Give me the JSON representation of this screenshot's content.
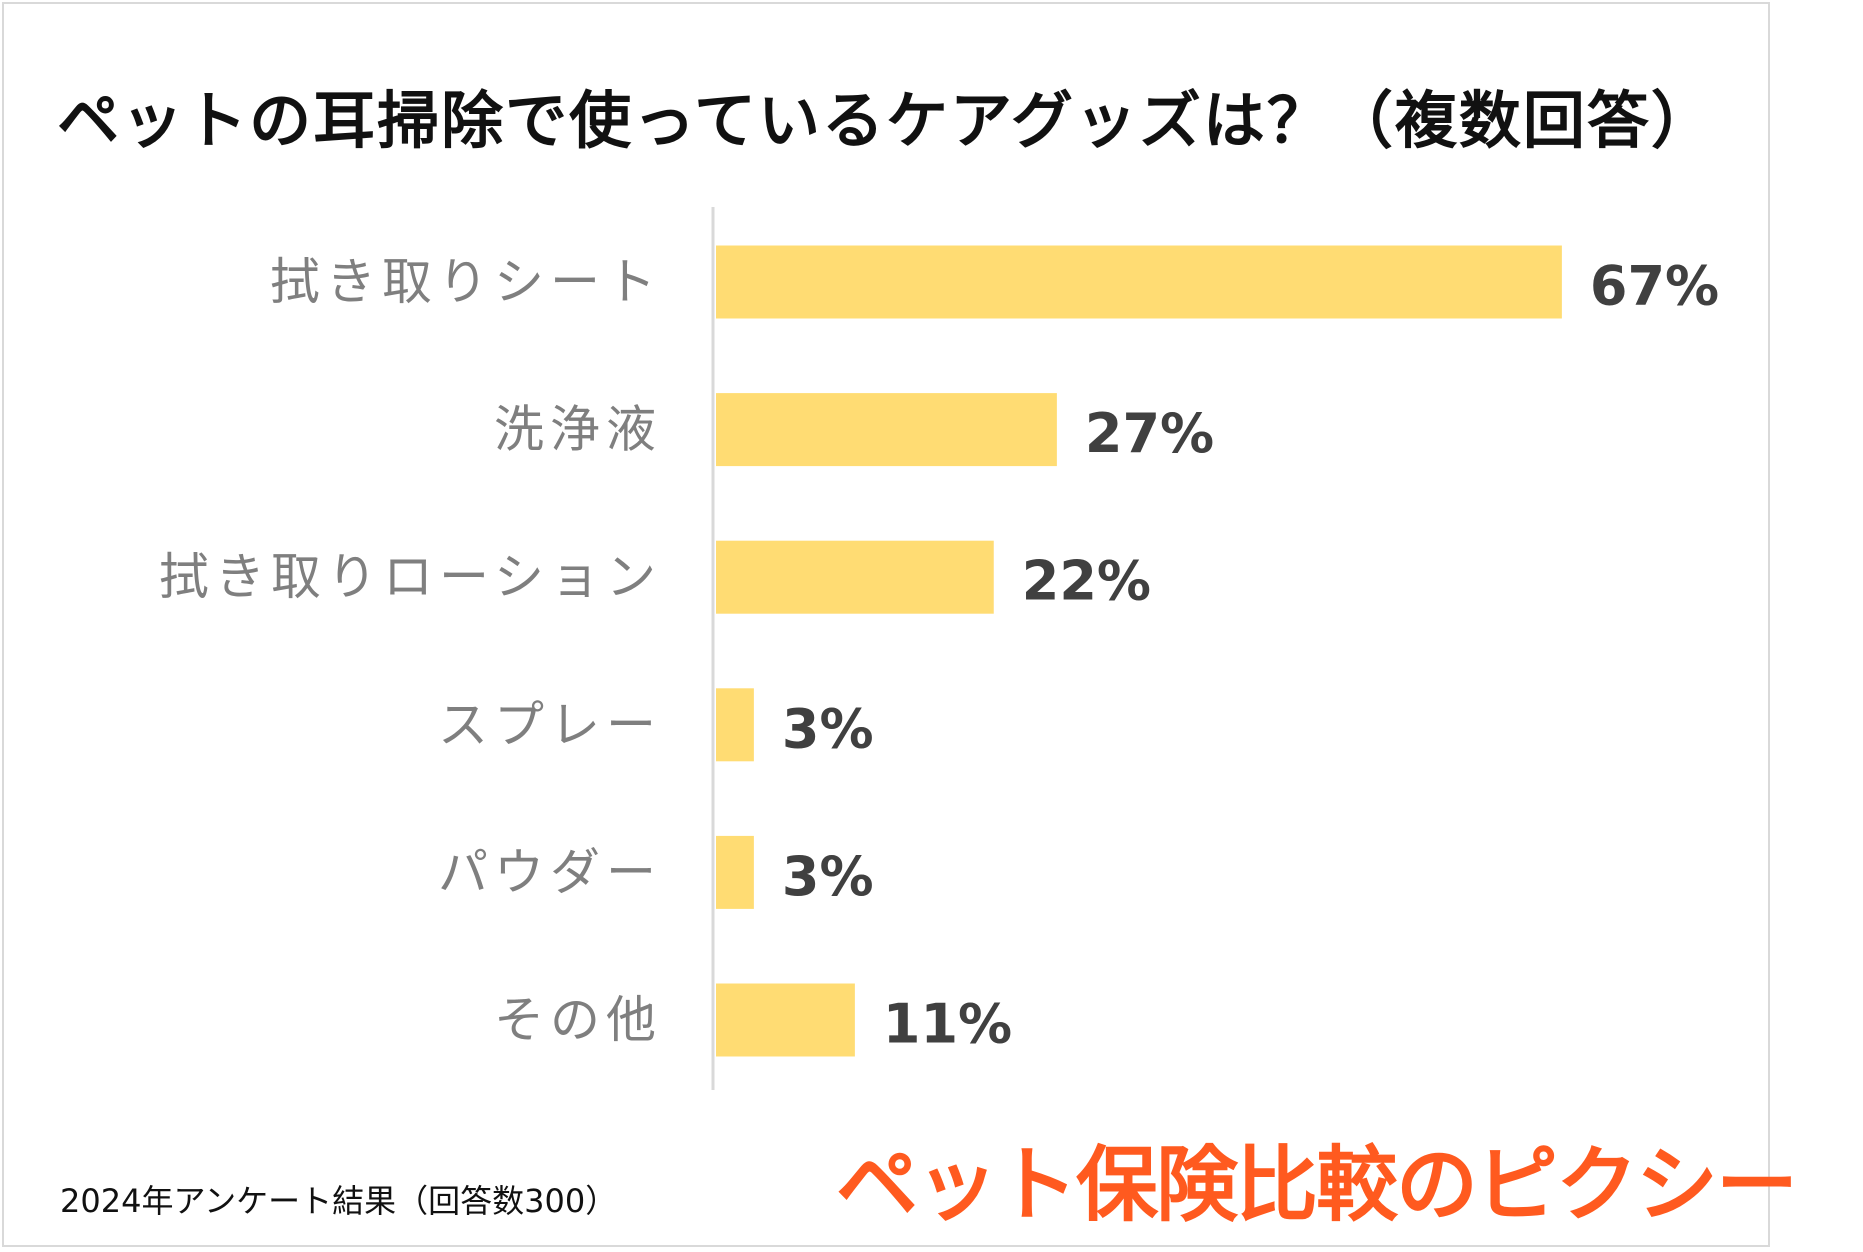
{
  "footnote": "2024年アンケート結果（回答数300）",
  "brand": {
    "name": "ペット保険比較のピクシー",
    "color": "#ff5a1f"
  },
  "chart_data": {
    "type": "bar",
    "orientation": "horizontal",
    "title": "ペットの耳掃除で使っているケアグッズは？（複数回答）",
    "categories": [
      "拭き取りシート",
      "洗浄液",
      "拭き取りローション",
      "スプレー",
      "パウダー",
      "その他"
    ],
    "values": [
      67,
      27,
      22,
      3,
      3,
      11
    ],
    "data_labels": [
      "67%",
      "27%",
      "22%",
      "3%",
      "3%",
      "11%"
    ],
    "unit": "%",
    "xlim": [
      0,
      80
    ],
    "grid": false,
    "legend": "none",
    "bar_color": "#ffdc73"
  }
}
